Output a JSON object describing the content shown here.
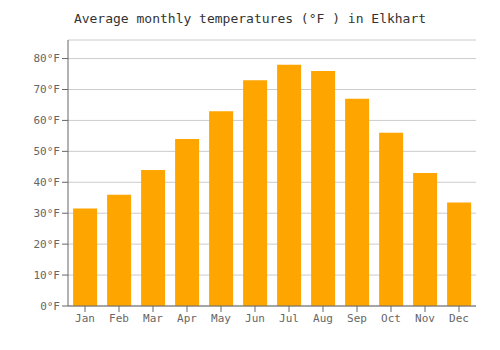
{
  "chart_data": {
    "type": "bar",
    "title": "Average monthly temperatures (°F ) in Elkhart",
    "categories": [
      "Jan",
      "Feb",
      "Mar",
      "Apr",
      "May",
      "Jun",
      "Jul",
      "Aug",
      "Sep",
      "Oct",
      "Nov",
      "Dec"
    ],
    "values": [
      31.5,
      36,
      44,
      54,
      63,
      73,
      78,
      76,
      67,
      56,
      43,
      33.5
    ],
    "color": "#FFA500",
    "ylim": [
      0,
      86
    ],
    "yticks": [
      {
        "value": 0,
        "label": "0°F"
      },
      {
        "value": 10,
        "label": "10°F"
      },
      {
        "value": 20,
        "label": "20°F"
      },
      {
        "value": 30,
        "label": "30°F"
      },
      {
        "value": 40,
        "label": "40°F"
      },
      {
        "value": 50,
        "label": "50°F"
      },
      {
        "value": 60,
        "label": "60°F"
      },
      {
        "value": 70,
        "label": "70°F"
      },
      {
        "value": 80,
        "label": "80°F"
      }
    ],
    "grid": true
  }
}
